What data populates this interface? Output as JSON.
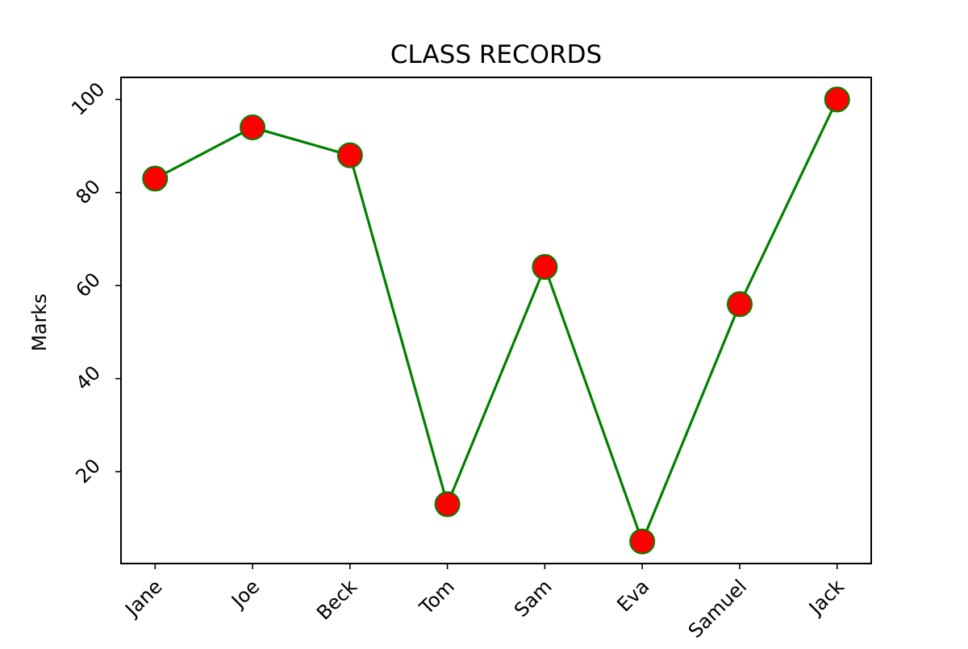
{
  "chart_data": {
    "type": "line",
    "title": "CLASS RECORDS",
    "xlabel": "",
    "ylabel": "Marks",
    "categories": [
      "Jane",
      "Joe",
      "Beck",
      "Tom",
      "Sam",
      "Eva",
      "Samuel",
      "Jack"
    ],
    "series": [
      {
        "values": [
          83,
          94,
          88,
          13,
          64,
          5,
          56,
          100
        ]
      }
    ],
    "ylim": [
      0.25,
      104.75
    ],
    "yticks": [
      20,
      40,
      60,
      80,
      100
    ],
    "x_tick_rotation_deg": 45,
    "y_tick_rotation_deg": 45,
    "grid": false,
    "legend": "none",
    "colors": {
      "line": "#008000",
      "marker_fill": "#ff0000",
      "marker_edge": "#008000",
      "axes": "#000000",
      "background": "#ffffff"
    }
  }
}
